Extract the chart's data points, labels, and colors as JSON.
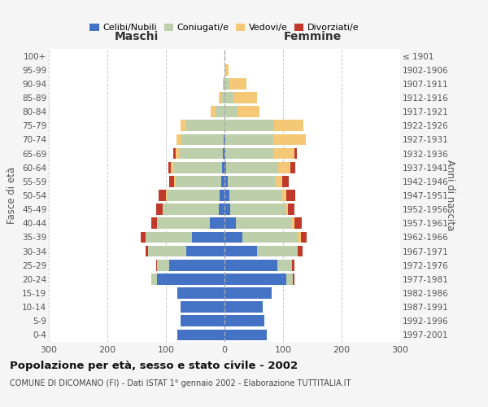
{
  "age_groups": [
    "0-4",
    "5-9",
    "10-14",
    "15-19",
    "20-24",
    "25-29",
    "30-34",
    "35-39",
    "40-44",
    "45-49",
    "50-54",
    "55-59",
    "60-64",
    "65-69",
    "70-74",
    "75-79",
    "80-84",
    "85-89",
    "90-94",
    "95-99",
    "100+"
  ],
  "birth_years": [
    "1997-2001",
    "1992-1996",
    "1987-1991",
    "1982-1986",
    "1977-1981",
    "1972-1976",
    "1967-1971",
    "1962-1966",
    "1957-1961",
    "1952-1956",
    "1947-1951",
    "1942-1946",
    "1937-1941",
    "1932-1936",
    "1927-1931",
    "1922-1926",
    "1917-1921",
    "1912-1916",
    "1907-1911",
    "1902-1906",
    "≤ 1901"
  ],
  "males": {
    "celibi": [
      80,
      75,
      75,
      80,
      115,
      95,
      65,
      55,
      25,
      10,
      8,
      6,
      4,
      3,
      2,
      0,
      0,
      0,
      0,
      0,
      0
    ],
    "coniugati": [
      0,
      0,
      0,
      0,
      10,
      20,
      65,
      80,
      90,
      95,
      90,
      78,
      82,
      75,
      72,
      65,
      15,
      5,
      3,
      0,
      0
    ],
    "vedovi": [
      0,
      0,
      0,
      0,
      0,
      0,
      0,
      0,
      0,
      0,
      2,
      2,
      5,
      5,
      8,
      10,
      8,
      5,
      0,
      0,
      0
    ],
    "divorziati": [
      0,
      0,
      0,
      0,
      0,
      2,
      5,
      8,
      10,
      12,
      12,
      8,
      5,
      5,
      0,
      0,
      0,
      0,
      0,
      0,
      0
    ]
  },
  "females": {
    "nubili": [
      72,
      68,
      65,
      80,
      105,
      90,
      55,
      30,
      20,
      10,
      8,
      5,
      3,
      2,
      2,
      0,
      0,
      0,
      0,
      0,
      0
    ],
    "coniugate": [
      0,
      0,
      0,
      0,
      12,
      25,
      70,
      95,
      95,
      95,
      90,
      83,
      88,
      82,
      82,
      85,
      22,
      15,
      8,
      2,
      0
    ],
    "vedove": [
      0,
      0,
      0,
      0,
      0,
      0,
      0,
      5,
      5,
      3,
      8,
      10,
      22,
      35,
      55,
      50,
      38,
      40,
      30,
      5,
      0
    ],
    "divorziate": [
      0,
      0,
      0,
      0,
      2,
      5,
      8,
      10,
      12,
      12,
      15,
      12,
      8,
      5,
      0,
      0,
      0,
      0,
      0,
      0,
      0
    ]
  },
  "colors": {
    "celibi_nubili": "#4472C4",
    "coniugati": "#BCCFAA",
    "vedovi": "#F5C878",
    "divorziati": "#C0392B"
  },
  "xlim": 300,
  "title": "Popolazione per età, sesso e stato civile - 2002",
  "subtitle": "COMUNE DI DICOMANO (FI) - Dati ISTAT 1° gennaio 2002 - Elaborazione TUTTITALIA.IT",
  "xlabel_left": "Maschi",
  "xlabel_right": "Femmine",
  "ylabel_left": "Fasce di età",
  "ylabel_right": "Anni di nascita",
  "bg_color": "#F5F5F5",
  "plot_bg": "#FFFFFF"
}
